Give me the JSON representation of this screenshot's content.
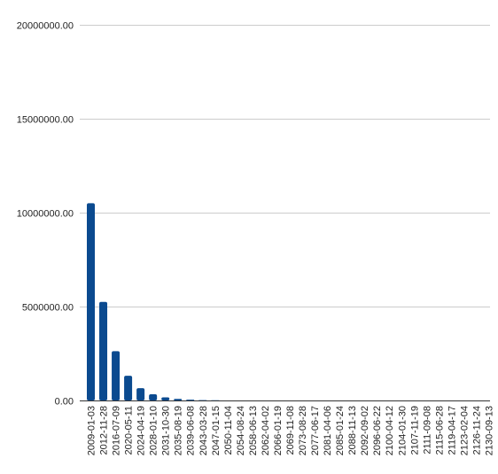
{
  "chart_data": {
    "type": "bar",
    "title": "",
    "xlabel": "",
    "ylabel": "",
    "ylim": [
      0,
      20000000
    ],
    "y_ticks": [
      "0.00",
      "5000000.00",
      "10000000.00",
      "15000000.00",
      "20000000.00"
    ],
    "y_tick_values": [
      0,
      5000000,
      10000000,
      15000000,
      20000000
    ],
    "grid": true,
    "legend": "none",
    "bar_color": "#0b4a8f",
    "categories": [
      "2009-01-03",
      "2012-11-28",
      "2016-07-09",
      "2020-05-11",
      "2024-04-19",
      "2028-01-10",
      "2031-10-30",
      "2035-08-19",
      "2039-06-08",
      "2043-03-28",
      "2047-01-15",
      "2050-11-04",
      "2054-08-24",
      "2058-06-13",
      "2062-04-02",
      "2066-01-19",
      "2069-11-08",
      "2073-08-28",
      "2077-06-17",
      "2081-04-06",
      "2085-01-24",
      "2088-11-13",
      "2092-09-02",
      "2096-06-22",
      "2100-04-12",
      "2104-01-30",
      "2107-11-19",
      "2111-09-08",
      "2115-06-28",
      "2119-04-17",
      "2123-02-04",
      "2126-11-24",
      "2130-09-13"
    ],
    "values": [
      10500000,
      5250000,
      2625000,
      1312500,
      656250,
      328125,
      164062.5,
      82031.25,
      41015.63,
      20507.81,
      10253.91,
      5126.95,
      2563.48,
      1281.74,
      640.87,
      320.43,
      160.22,
      80.11,
      40.05,
      20.03,
      10.01,
      5.01,
      2.5,
      1.25,
      0.63,
      0.31,
      0.16,
      0.08,
      0.04,
      0.02,
      0.01,
      0.0,
      0.0
    ]
  }
}
